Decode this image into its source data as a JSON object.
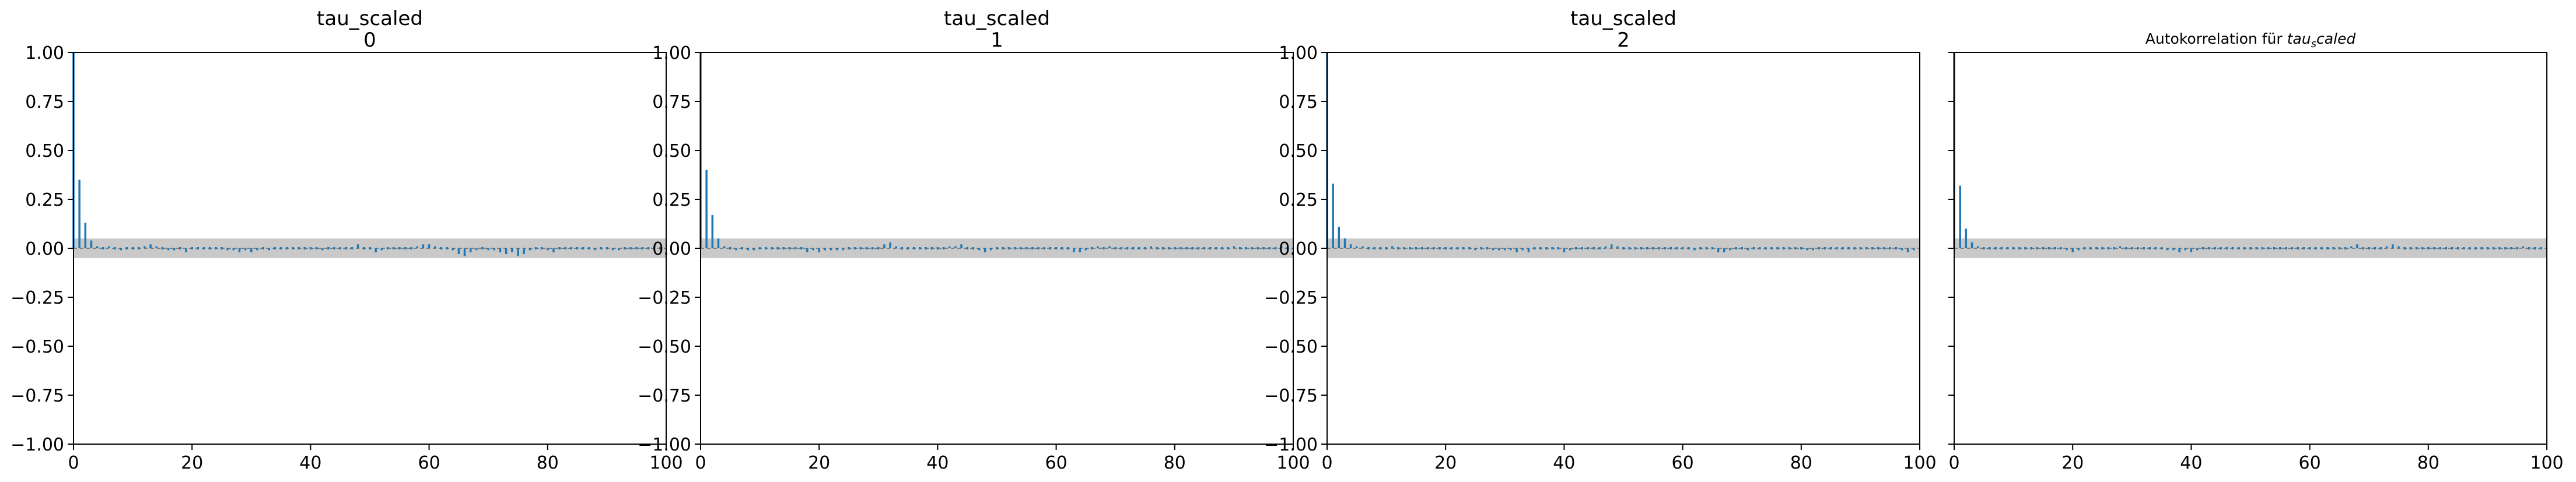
{
  "chart_data": [
    {
      "type": "bar",
      "title": "tau_scaled",
      "subtitle": "0",
      "xlim": [
        0,
        100
      ],
      "ylim": [
        -1.0,
        1.0
      ],
      "xticks": [
        "0",
        "20",
        "40",
        "60",
        "80",
        "100"
      ],
      "yticks": [
        "1.00",
        "0.75",
        "0.50",
        "0.25",
        "0.00",
        "−0.25",
        "−0.50",
        "−0.75",
        "−1.00"
      ],
      "confidence_band": [
        -0.05,
        0.05
      ],
      "lags": [
        0,
        1,
        2,
        3,
        4,
        5,
        6,
        7,
        8,
        9,
        10,
        11,
        12,
        13,
        14,
        15,
        16,
        17,
        18,
        19,
        20,
        21,
        22,
        23,
        24,
        25,
        26,
        27,
        28,
        29,
        30,
        31,
        32,
        33,
        34,
        35,
        36,
        37,
        38,
        39,
        40,
        41,
        42,
        43,
        44,
        45,
        46,
        47,
        48,
        49,
        50,
        51,
        52,
        53,
        54,
        55,
        56,
        57,
        58,
        59,
        60,
        61,
        62,
        63,
        64,
        65,
        66,
        67,
        68,
        69,
        70,
        71,
        72,
        73,
        74,
        75,
        76,
        77,
        78,
        79,
        80,
        81,
        82,
        83,
        84,
        85,
        86,
        87,
        88,
        89,
        90,
        91,
        92,
        93,
        94,
        95,
        96,
        97,
        98,
        99
      ],
      "values": [
        1.0,
        0.35,
        0.13,
        0.04,
        0.01,
        0.0,
        0.01,
        0.0,
        -0.01,
        0.0,
        0.0,
        0.0,
        0.01,
        0.02,
        0.01,
        0.0,
        -0.01,
        -0.01,
        0.0,
        -0.02,
        0.0,
        0.0,
        0.0,
        0.0,
        0.0,
        0.0,
        -0.01,
        -0.01,
        -0.02,
        -0.01,
        -0.02,
        -0.01,
        0.0,
        -0.01,
        0.0,
        0.0,
        0.0,
        0.0,
        0.0,
        0.0,
        0.0,
        0.0,
        -0.01,
        0.0,
        0.0,
        0.0,
        0.0,
        0.0,
        0.02,
        0.0,
        0.0,
        -0.02,
        -0.01,
        0.0,
        0.0,
        0.0,
        0.0,
        0.0,
        0.01,
        0.02,
        0.02,
        0.01,
        0.0,
        0.0,
        -0.01,
        -0.03,
        -0.04,
        -0.02,
        -0.01,
        0.0,
        -0.01,
        -0.01,
        -0.02,
        -0.03,
        -0.02,
        -0.04,
        -0.03,
        -0.01,
        0.0,
        0.0,
        -0.01,
        -0.02,
        0.0,
        0.0,
        0.0,
        0.0,
        0.0,
        0.0,
        -0.01,
        0.0,
        0.0,
        -0.01,
        -0.01,
        0.0,
        0.0,
        0.0,
        0.0,
        0.0,
        0.01,
        0.0
      ]
    },
    {
      "type": "bar",
      "title": "tau_scaled",
      "subtitle": "1",
      "xlim": [
        0,
        100
      ],
      "ylim": [
        -1.0,
        1.0
      ],
      "xticks": [
        "0",
        "20",
        "40",
        "60",
        "80",
        "100"
      ],
      "yticks": [
        "1.00",
        "0.75",
        "0.50",
        "0.25",
        "0.00",
        "−0.25",
        "−0.50",
        "−0.75",
        "−1.00"
      ],
      "confidence_band": [
        -0.05,
        0.05
      ],
      "lags": [
        0,
        1,
        2,
        3,
        4,
        5,
        6,
        7,
        8,
        9,
        10,
        11,
        12,
        13,
        14,
        15,
        16,
        17,
        18,
        19,
        20,
        21,
        22,
        23,
        24,
        25,
        26,
        27,
        28,
        29,
        30,
        31,
        32,
        33,
        34,
        35,
        36,
        37,
        38,
        39,
        40,
        41,
        42,
        43,
        44,
        45,
        46,
        47,
        48,
        49,
        50,
        51,
        52,
        53,
        54,
        55,
        56,
        57,
        58,
        59,
        60,
        61,
        62,
        63,
        64,
        65,
        66,
        67,
        68,
        69,
        70,
        71,
        72,
        73,
        74,
        75,
        76,
        77,
        78,
        79,
        80,
        81,
        82,
        83,
        84,
        85,
        86,
        87,
        88,
        89,
        90,
        91,
        92,
        93,
        94,
        95,
        96,
        97,
        98,
        99
      ],
      "values": [
        1.0,
        0.4,
        0.17,
        0.05,
        0.01,
        0.0,
        -0.01,
        0.0,
        -0.01,
        -0.01,
        0.0,
        0.0,
        0.0,
        0.0,
        0.0,
        0.0,
        0.0,
        0.0,
        -0.02,
        -0.01,
        -0.02,
        -0.01,
        -0.01,
        -0.01,
        -0.01,
        0.0,
        0.0,
        0.0,
        0.0,
        0.0,
        0.0,
        0.02,
        0.03,
        0.01,
        0.0,
        0.0,
        0.0,
        0.0,
        0.0,
        0.0,
        0.0,
        0.0,
        0.01,
        0.01,
        0.02,
        0.0,
        0.0,
        -0.01,
        -0.02,
        -0.01,
        0.0,
        0.0,
        0.0,
        0.0,
        0.0,
        0.0,
        0.0,
        0.0,
        0.0,
        0.0,
        0.0,
        0.0,
        0.0,
        -0.02,
        -0.02,
        -0.01,
        0.0,
        0.01,
        0.0,
        0.01,
        0.0,
        0.0,
        0.0,
        0.0,
        0.0,
        0.0,
        0.01,
        0.0,
        0.0,
        0.0,
        0.0,
        0.0,
        0.0,
        0.0,
        0.0,
        0.0,
        0.0,
        0.0,
        0.0,
        0.0,
        0.01,
        0.0,
        0.0,
        0.0,
        0.0,
        0.0,
        0.0,
        0.0,
        0.01,
        0.0
      ]
    },
    {
      "type": "bar",
      "title": "tau_scaled",
      "subtitle": "2",
      "xlim": [
        0,
        100
      ],
      "ylim": [
        -1.0,
        1.0
      ],
      "xticks": [
        "0",
        "20",
        "40",
        "60",
        "80",
        "100"
      ],
      "yticks": [
        "1.00",
        "0.75",
        "0.50",
        "0.25",
        "0.00",
        "−0.25",
        "−0.50",
        "−0.75",
        "−1.00"
      ],
      "confidence_band": [
        -0.05,
        0.05
      ],
      "lags": [
        0,
        1,
        2,
        3,
        4,
        5,
        6,
        7,
        8,
        9,
        10,
        11,
        12,
        13,
        14,
        15,
        16,
        17,
        18,
        19,
        20,
        21,
        22,
        23,
        24,
        25,
        26,
        27,
        28,
        29,
        30,
        31,
        32,
        33,
        34,
        35,
        36,
        37,
        38,
        39,
        40,
        41,
        42,
        43,
        44,
        45,
        46,
        47,
        48,
        49,
        50,
        51,
        52,
        53,
        54,
        55,
        56,
        57,
        58,
        59,
        60,
        61,
        62,
        63,
        64,
        65,
        66,
        67,
        68,
        69,
        70,
        71,
        72,
        73,
        74,
        75,
        76,
        77,
        78,
        79,
        80,
        81,
        82,
        83,
        84,
        85,
        86,
        87,
        88,
        89,
        90,
        91,
        92,
        93,
        94,
        95,
        96,
        97,
        98,
        99
      ],
      "values": [
        1.0,
        0.33,
        0.11,
        0.05,
        0.02,
        0.01,
        0.01,
        0.0,
        0.0,
        0.0,
        0.0,
        0.01,
        0.0,
        0.0,
        0.0,
        0.0,
        0.0,
        0.0,
        0.0,
        0.0,
        0.0,
        0.0,
        0.0,
        0.0,
        0.0,
        -0.01,
        0.0,
        0.0,
        -0.01,
        -0.01,
        -0.01,
        -0.01,
        -0.02,
        -0.01,
        -0.02,
        0.0,
        0.0,
        0.0,
        0.0,
        0.0,
        -0.02,
        -0.01,
        0.0,
        0.0,
        0.0,
        0.0,
        0.0,
        0.01,
        0.02,
        0.01,
        0.0,
        0.0,
        0.0,
        0.0,
        0.0,
        0.0,
        0.0,
        0.0,
        0.0,
        0.0,
        0.0,
        0.0,
        -0.01,
        0.0,
        0.0,
        0.0,
        -0.02,
        -0.02,
        -0.01,
        0.0,
        0.0,
        -0.01,
        0.0,
        0.0,
        0.0,
        0.0,
        0.0,
        0.0,
        0.0,
        0.0,
        0.0,
        -0.01,
        -0.01,
        0.0,
        0.0,
        0.0,
        0.0,
        0.0,
        0.0,
        0.0,
        0.0,
        0.0,
        0.0,
        0.0,
        0.0,
        0.0,
        0.0,
        -0.01,
        -0.02,
        -0.01
      ]
    },
    {
      "type": "bar",
      "title": "Autokorrelation für ",
      "title_math": {
        "base": "tau",
        "sub": "s",
        "rest": "caled"
      },
      "xlim": [
        0,
        100
      ],
      "ylim": [
        -1.0,
        1.0
      ],
      "xticks": [
        "0",
        "20",
        "40",
        "60",
        "80",
        "100"
      ],
      "confidence_band": [
        -0.05,
        0.05
      ],
      "lags": [
        0,
        1,
        2,
        3,
        4,
        5,
        6,
        7,
        8,
        9,
        10,
        11,
        12,
        13,
        14,
        15,
        16,
        17,
        18,
        19,
        20,
        21,
        22,
        23,
        24,
        25,
        26,
        27,
        28,
        29,
        30,
        31,
        32,
        33,
        34,
        35,
        36,
        37,
        38,
        39,
        40,
        41,
        42,
        43,
        44,
        45,
        46,
        47,
        48,
        49,
        50,
        51,
        52,
        53,
        54,
        55,
        56,
        57,
        58,
        59,
        60,
        61,
        62,
        63,
        64,
        65,
        66,
        67,
        68,
        69,
        70,
        71,
        72,
        73,
        74,
        75,
        76,
        77,
        78,
        79,
        80,
        81,
        82,
        83,
        84,
        85,
        86,
        87,
        88,
        89,
        90,
        91,
        92,
        93,
        94,
        95,
        96,
        97,
        98,
        99
      ],
      "values": [
        1.0,
        0.32,
        0.1,
        0.03,
        0.01,
        0.0,
        0.0,
        0.0,
        0.0,
        0.0,
        0.0,
        0.0,
        0.0,
        0.0,
        0.0,
        0.0,
        0.0,
        0.0,
        0.0,
        -0.01,
        -0.02,
        -0.01,
        0.0,
        0.0,
        0.0,
        0.0,
        0.0,
        0.0,
        0.01,
        0.0,
        0.0,
        0.0,
        0.0,
        0.0,
        0.0,
        0.0,
        -0.01,
        -0.01,
        -0.02,
        -0.01,
        -0.02,
        -0.01,
        0.0,
        0.0,
        0.0,
        0.0,
        0.0,
        0.0,
        0.0,
        0.0,
        0.0,
        0.0,
        0.0,
        0.0,
        0.0,
        0.0,
        0.0,
        0.0,
        0.0,
        0.0,
        0.0,
        0.0,
        0.0,
        0.0,
        0.0,
        0.0,
        0.0,
        0.01,
        0.02,
        0.0,
        0.0,
        0.0,
        0.0,
        0.01,
        0.02,
        0.01,
        0.0,
        0.0,
        0.0,
        0.0,
        0.0,
        0.0,
        0.0,
        0.0,
        0.0,
        0.0,
        0.0,
        0.0,
        0.0,
        0.0,
        0.0,
        0.0,
        0.0,
        0.0,
        0.0,
        0.0,
        0.01,
        0.0,
        0.0,
        0.0
      ]
    }
  ],
  "colors": {
    "stem": "#1f77b4",
    "band": "#bfbfbf",
    "frame": "#000000"
  }
}
